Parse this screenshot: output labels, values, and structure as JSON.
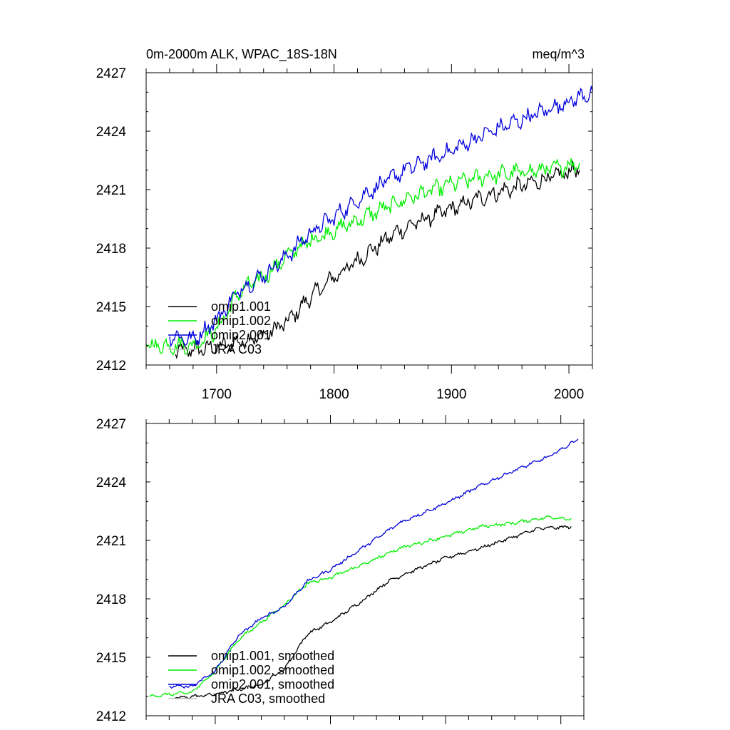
{
  "chart_data": [
    {
      "type": "line",
      "title": "0m-2000m ALK, WPAC_18S-18N",
      "units": "meq/m^3",
      "xlim": [
        1640,
        2020
      ],
      "ylim": [
        2412,
        2427
      ],
      "yticks": [
        2412,
        2415,
        2418,
        2421,
        2424,
        2427
      ],
      "ytick_labels": [
        "2412",
        "2415",
        "2418",
        "2421",
        "2424",
        "2427"
      ],
      "xticks": [
        1700,
        1800,
        1900,
        2000
      ],
      "xtick_labels": [
        "1700",
        "1800",
        "1900",
        "2000"
      ],
      "legend_position": "lower-left",
      "grid": false,
      "series": [
        {
          "name": "omip1.001",
          "color": "#000000",
          "noise": 0.3,
          "x": [
            1665,
            1700,
            1740,
            1760,
            1780,
            1800,
            1830,
            1850,
            1870,
            1900,
            1930,
            1960,
            1990,
            2009
          ],
          "values": [
            2412.7,
            2412.9,
            2413.5,
            2414.2,
            2415.5,
            2416.5,
            2417.8,
            2418.7,
            2419.3,
            2420.0,
            2420.7,
            2421.2,
            2421.7,
            2422.1
          ]
        },
        {
          "name": "omip1.002",
          "color": "#00ee00",
          "noise": 0.3,
          "x": [
            1640,
            1680,
            1700,
            1720,
            1740,
            1760,
            1780,
            1800,
            1830,
            1860,
            1900,
            1930,
            1960,
            1990,
            2009
          ],
          "values": [
            2413.0,
            2413.0,
            2413.8,
            2415.8,
            2416.5,
            2417.6,
            2418.4,
            2418.9,
            2419.7,
            2420.5,
            2421.3,
            2421.7,
            2421.9,
            2422.1,
            2422.4
          ]
        },
        {
          "name": "omip2.001",
          "color": "#0000dd",
          "noise": 0.3,
          "x": [
            1660,
            1680,
            1700,
            1720,
            1740,
            1760,
            1780,
            1800,
            1830,
            1860,
            1900,
            1930,
            1960,
            1990,
            2020
          ],
          "values": [
            2413.5,
            2413.3,
            2414.3,
            2415.9,
            2416.6,
            2417.6,
            2418.8,
            2419.6,
            2420.9,
            2422.0,
            2423.0,
            2423.9,
            2424.6,
            2425.3,
            2426.0
          ]
        }
      ],
      "legend_entries": [
        "omip1.001",
        "omip1.002",
        "omip2.001",
        "JRA C03"
      ],
      "legend_colors": [
        "#000000",
        "#00ee00",
        "#0000dd",
        "#c0c0c0"
      ]
    },
    {
      "type": "line",
      "xlim": [
        1640,
        2020
      ],
      "ylim": [
        2412,
        2427
      ],
      "yticks": [
        2412,
        2415,
        2418,
        2421,
        2424,
        2427
      ],
      "ytick_labels": [
        "2412",
        "2415",
        "2418",
        "2421",
        "2424",
        "2427"
      ],
      "xticks": [
        1700,
        1800,
        1900,
        2000
      ],
      "legend_position": "lower-left",
      "grid": false,
      "series": [
        {
          "name": "omip1.001, smoothed",
          "color": "#000000",
          "noise": 0.06,
          "x": [
            1665,
            1700,
            1740,
            1760,
            1780,
            1800,
            1830,
            1850,
            1870,
            1900,
            1930,
            1960,
            1980,
            2009
          ],
          "values": [
            2412.9,
            2413.1,
            2413.6,
            2414.4,
            2416.2,
            2416.8,
            2418.0,
            2418.9,
            2419.4,
            2420.1,
            2420.6,
            2421.2,
            2421.6,
            2421.7
          ]
        },
        {
          "name": "omip1.002, smoothed",
          "color": "#00ee00",
          "noise": 0.06,
          "x": [
            1643,
            1680,
            1700,
            1720,
            1740,
            1760,
            1780,
            1800,
            1830,
            1860,
            1900,
            1930,
            1960,
            1990,
            2009
          ],
          "values": [
            2413.0,
            2413.2,
            2414.3,
            2415.9,
            2416.8,
            2417.7,
            2418.8,
            2419.1,
            2419.8,
            2420.6,
            2421.2,
            2421.7,
            2421.9,
            2422.2,
            2422.1
          ]
        },
        {
          "name": "omip2.001, smoothed",
          "color": "#0000dd",
          "noise": 0.06,
          "x": [
            1660,
            1680,
            1700,
            1720,
            1740,
            1760,
            1780,
            1800,
            1830,
            1860,
            1900,
            1930,
            1960,
            1990,
            2015
          ],
          "values": [
            2413.5,
            2413.5,
            2414.3,
            2416.1,
            2417.0,
            2417.6,
            2418.9,
            2419.5,
            2420.7,
            2421.9,
            2422.9,
            2423.8,
            2424.6,
            2425.3,
            2426.2
          ]
        }
      ],
      "legend_entries": [
        "omip1.001, smoothed",
        "omip1.002, smoothed",
        "omip2.001, smoothed",
        "JRA C03, smoothed"
      ],
      "legend_colors": [
        "#000000",
        "#00ee00",
        "#0000dd",
        "#c0c0c0"
      ]
    }
  ]
}
